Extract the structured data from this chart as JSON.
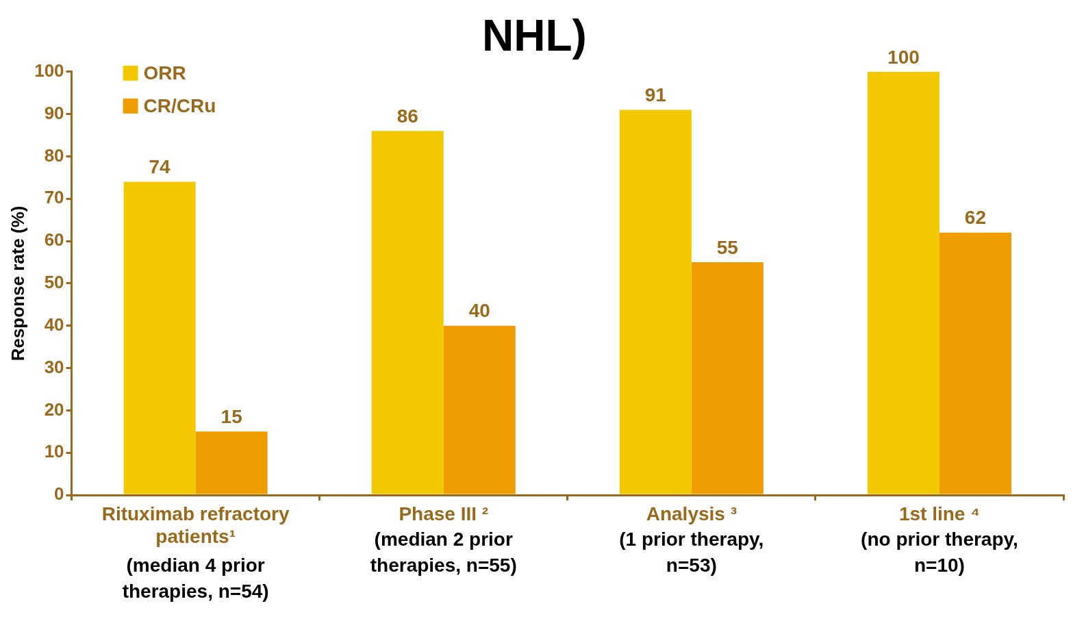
{
  "chart_data": {
    "type": "bar",
    "title": "NHL)",
    "ylabel": "Response rate (%)",
    "categories": [
      "Rituximab refractory patients¹",
      "Phase III ²",
      "Analysis ³",
      "1st line ⁴"
    ],
    "annotations": [
      "(median 4 prior therapies, n=54)",
      "(median 2 prior therapies, n=55)",
      "(1 prior therapy, n=53)",
      "(no prior therapy, n=10)"
    ],
    "series": [
      {
        "name": "ORR",
        "color": "#f3c800",
        "values": [
          74,
          86,
          91,
          100
        ]
      },
      {
        "name": "CR/CRu",
        "color": "#ee9c00",
        "values": [
          15,
          40,
          55,
          62
        ]
      }
    ],
    "ylim": [
      0,
      100
    ],
    "yticks": [
      0,
      10,
      20,
      30,
      40,
      50,
      60,
      70,
      80,
      90,
      100
    ],
    "grid": false,
    "legend": "top left",
    "data_labels": true
  }
}
